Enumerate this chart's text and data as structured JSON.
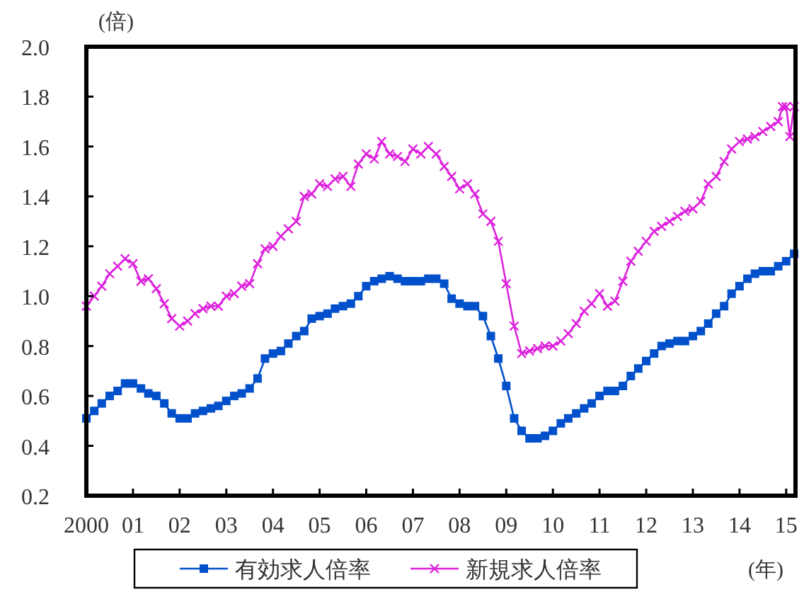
{
  "chart_data": {
    "type": "line",
    "ylabel": "(倍)",
    "xlabel": "(年)",
    "legend": "bottom",
    "xlim": [
      2000,
      2015.2
    ],
    "ylim": [
      0.2,
      2.0
    ],
    "xticks": [
      {
        "value": 2000,
        "label": "2000"
      },
      {
        "value": 2001,
        "label": "01"
      },
      {
        "value": 2002,
        "label": "02"
      },
      {
        "value": 2003,
        "label": "03"
      },
      {
        "value": 2004,
        "label": "04"
      },
      {
        "value": 2005,
        "label": "05"
      },
      {
        "value": 2006,
        "label": "06"
      },
      {
        "value": 2007,
        "label": "07"
      },
      {
        "value": 2008,
        "label": "08"
      },
      {
        "value": 2009,
        "label": "09"
      },
      {
        "value": 2010,
        "label": "10"
      },
      {
        "value": 2011,
        "label": "11"
      },
      {
        "value": 2012,
        "label": "12"
      },
      {
        "value": 2013,
        "label": "13"
      },
      {
        "value": 2014,
        "label": "14"
      },
      {
        "value": 2015,
        "label": "15"
      }
    ],
    "yticks": [
      {
        "value": 0.2,
        "label": "0.2"
      },
      {
        "value": 0.4,
        "label": "0.4"
      },
      {
        "value": 0.6,
        "label": "0.6"
      },
      {
        "value": 0.8,
        "label": "0.8"
      },
      {
        "value": 1.0,
        "label": "1.0"
      },
      {
        "value": 1.2,
        "label": "1.2"
      },
      {
        "value": 1.4,
        "label": "1.4"
      },
      {
        "value": 1.6,
        "label": "1.6"
      },
      {
        "value": 1.8,
        "label": "1.8"
      },
      {
        "value": 2.0,
        "label": "2.0"
      }
    ],
    "series": [
      {
        "name": "有効求人倍率",
        "color": "#0050cc",
        "marker": "square",
        "x": [
          2000.0,
          2000.17,
          2000.33,
          2000.5,
          2000.67,
          2000.83,
          2001.0,
          2001.17,
          2001.33,
          2001.5,
          2001.67,
          2001.83,
          2002.0,
          2002.17,
          2002.33,
          2002.5,
          2002.67,
          2002.83,
          2003.0,
          2003.17,
          2003.33,
          2003.5,
          2003.67,
          2003.83,
          2004.0,
          2004.17,
          2004.33,
          2004.5,
          2004.67,
          2004.83,
          2005.0,
          2005.17,
          2005.33,
          2005.5,
          2005.67,
          2005.83,
          2006.0,
          2006.17,
          2006.33,
          2006.5,
          2006.67,
          2006.83,
          2007.0,
          2007.17,
          2007.33,
          2007.5,
          2007.67,
          2007.83,
          2008.0,
          2008.17,
          2008.33,
          2008.5,
          2008.67,
          2008.83,
          2009.0,
          2009.17,
          2009.33,
          2009.5,
          2009.67,
          2009.83,
          2010.0,
          2010.17,
          2010.33,
          2010.5,
          2010.67,
          2010.83,
          2011.0,
          2011.17,
          2011.33,
          2011.5,
          2011.67,
          2011.83,
          2012.0,
          2012.17,
          2012.33,
          2012.5,
          2012.67,
          2012.83,
          2013.0,
          2013.17,
          2013.33,
          2013.5,
          2013.67,
          2013.83,
          2014.0,
          2014.17,
          2014.33,
          2014.5,
          2014.67,
          2014.83,
          2015.0,
          2015.17
        ],
        "values": [
          0.51,
          0.54,
          0.57,
          0.6,
          0.62,
          0.65,
          0.65,
          0.63,
          0.61,
          0.6,
          0.57,
          0.53,
          0.51,
          0.51,
          0.53,
          0.54,
          0.55,
          0.56,
          0.58,
          0.6,
          0.61,
          0.63,
          0.67,
          0.75,
          0.77,
          0.78,
          0.81,
          0.84,
          0.86,
          0.91,
          0.92,
          0.93,
          0.95,
          0.96,
          0.97,
          1.0,
          1.04,
          1.06,
          1.07,
          1.08,
          1.07,
          1.06,
          1.06,
          1.06,
          1.07,
          1.07,
          1.05,
          0.99,
          0.97,
          0.96,
          0.96,
          0.92,
          0.84,
          0.75,
          0.64,
          0.51,
          0.46,
          0.43,
          0.43,
          0.44,
          0.46,
          0.49,
          0.51,
          0.53,
          0.55,
          0.57,
          0.6,
          0.62,
          0.62,
          0.64,
          0.68,
          0.71,
          0.74,
          0.77,
          0.8,
          0.81,
          0.82,
          0.82,
          0.84,
          0.86,
          0.89,
          0.93,
          0.96,
          1.01,
          1.04,
          1.07,
          1.09,
          1.1,
          1.1,
          1.12,
          1.14,
          1.17
        ]
      },
      {
        "name": "新規求人倍率",
        "color": "#dd22dd",
        "marker": "cross",
        "x": [
          2000.0,
          2000.17,
          2000.33,
          2000.5,
          2000.67,
          2000.83,
          2001.0,
          2001.17,
          2001.33,
          2001.5,
          2001.67,
          2001.83,
          2002.0,
          2002.17,
          2002.33,
          2002.5,
          2002.67,
          2002.83,
          2003.0,
          2003.17,
          2003.33,
          2003.5,
          2003.67,
          2003.83,
          2004.0,
          2004.17,
          2004.33,
          2004.5,
          2004.67,
          2004.83,
          2005.0,
          2005.17,
          2005.33,
          2005.5,
          2005.67,
          2005.83,
          2006.0,
          2006.17,
          2006.33,
          2006.5,
          2006.67,
          2006.83,
          2007.0,
          2007.17,
          2007.33,
          2007.5,
          2007.67,
          2007.83,
          2008.0,
          2008.17,
          2008.33,
          2008.5,
          2008.67,
          2008.83,
          2009.0,
          2009.17,
          2009.33,
          2009.5,
          2009.67,
          2009.83,
          2010.0,
          2010.17,
          2010.33,
          2010.5,
          2010.67,
          2010.83,
          2011.0,
          2011.17,
          2011.33,
          2011.5,
          2011.67,
          2011.83,
          2012.0,
          2012.17,
          2012.33,
          2012.5,
          2012.67,
          2012.83,
          2013.0,
          2013.17,
          2013.33,
          2013.5,
          2013.67,
          2013.83,
          2014.0,
          2014.17,
          2014.33,
          2014.5,
          2014.67,
          2014.83,
          2014.92,
          2015.0,
          2015.08,
          2015.17
        ],
        "values": [
          0.96,
          1.0,
          1.04,
          1.09,
          1.12,
          1.15,
          1.13,
          1.06,
          1.07,
          1.03,
          0.97,
          0.91,
          0.88,
          0.9,
          0.93,
          0.95,
          0.96,
          0.96,
          1.0,
          1.01,
          1.04,
          1.05,
          1.13,
          1.19,
          1.2,
          1.24,
          1.27,
          1.3,
          1.4,
          1.41,
          1.45,
          1.44,
          1.47,
          1.48,
          1.44,
          1.53,
          1.57,
          1.55,
          1.62,
          1.57,
          1.56,
          1.54,
          1.59,
          1.57,
          1.6,
          1.57,
          1.52,
          1.48,
          1.43,
          1.45,
          1.41,
          1.33,
          1.3,
          1.22,
          1.05,
          0.88,
          0.77,
          0.78,
          0.79,
          0.8,
          0.8,
          0.82,
          0.85,
          0.89,
          0.94,
          0.97,
          1.01,
          0.96,
          0.98,
          1.06,
          1.14,
          1.18,
          1.22,
          1.26,
          1.28,
          1.3,
          1.32,
          1.34,
          1.35,
          1.38,
          1.45,
          1.48,
          1.54,
          1.59,
          1.62,
          1.63,
          1.64,
          1.66,
          1.68,
          1.7,
          1.76,
          1.76,
          1.64,
          1.76
        ]
      }
    ]
  }
}
